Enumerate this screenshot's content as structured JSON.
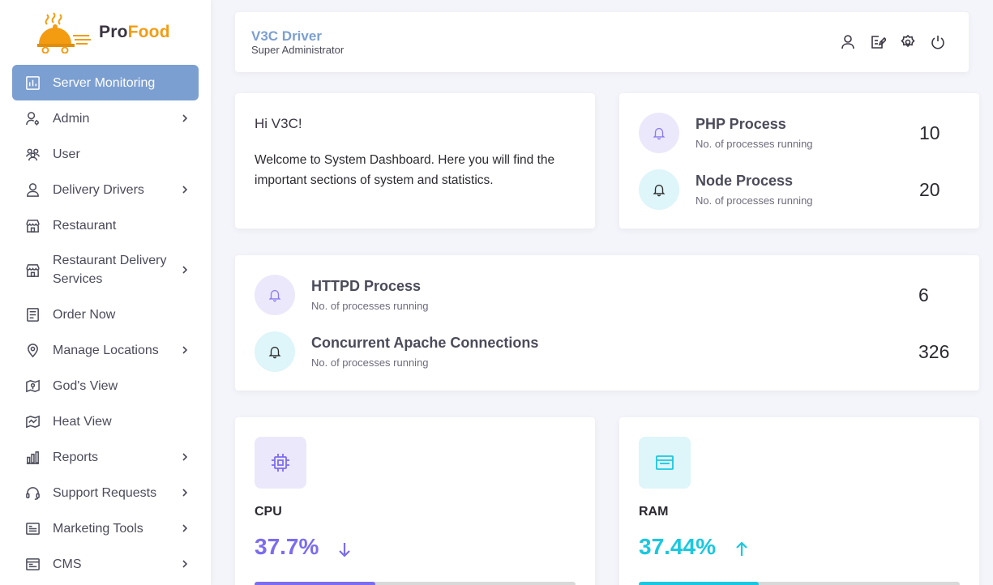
{
  "brand": {
    "logo_pro": "Pro",
    "logo_food": "Food",
    "accent": "#f39c12"
  },
  "sidebar": {
    "active_color": "#7c9fd1",
    "items": [
      {
        "label": "Server Monitoring",
        "icon": "chart-icon",
        "active": true
      },
      {
        "label": "Admin",
        "icon": "admin-icon",
        "has_submenu": true
      },
      {
        "label": "User",
        "icon": "users-icon"
      },
      {
        "label": "Delivery Drivers",
        "icon": "driver-icon",
        "has_submenu": true
      },
      {
        "label": "Restaurant",
        "icon": "store-icon"
      },
      {
        "label": "Restaurant Delivery Services",
        "icon": "store-icon",
        "has_submenu": true
      },
      {
        "label": "Order Now",
        "icon": "order-icon"
      },
      {
        "label": "Manage Locations",
        "icon": "location-pin-icon",
        "has_submenu": true
      },
      {
        "label": "God's View",
        "icon": "map-view-icon"
      },
      {
        "label": "Heat View",
        "icon": "heat-map-icon"
      },
      {
        "label": "Reports",
        "icon": "bar-chart-icon",
        "has_submenu": true
      },
      {
        "label": "Support Requests",
        "icon": "headset-icon",
        "has_submenu": true
      },
      {
        "label": "Marketing Tools",
        "icon": "marketing-icon",
        "has_submenu": true
      },
      {
        "label": "CMS",
        "icon": "cms-icon",
        "has_submenu": true
      }
    ]
  },
  "header": {
    "user_name": "V3C Driver",
    "user_role": "Super Administrator",
    "icons": [
      "profile-icon",
      "edit-note-icon",
      "settings-icon",
      "power-icon"
    ]
  },
  "welcome": {
    "greeting": "Hi V3C!",
    "message": "Welcome to System Dashboard. Here you will find the important sections of system and statistics."
  },
  "processes": [
    {
      "title": "PHP Process",
      "subtitle": "No. of processes running",
      "value": "10",
      "icon": "bell-icon",
      "tone": "purple"
    },
    {
      "title": "Node Process",
      "subtitle": "No. of processes running",
      "value": "20",
      "icon": "bell-icon",
      "tone": "cyan"
    },
    {
      "title": "HTTPD Process",
      "subtitle": "No. of processes running",
      "value": "6",
      "icon": "bell-icon",
      "tone": "purple"
    },
    {
      "title": "Concurrent Apache Connections",
      "subtitle": "No. of processes running",
      "value": "326",
      "icon": "bell-icon",
      "tone": "cyan"
    }
  ],
  "stats": {
    "cpu": {
      "label": "CPU",
      "value": "37.7%",
      "percent": 37.7,
      "trend": "down",
      "color": "#7b6cf0",
      "icon": "cpu-chip-icon"
    },
    "ram": {
      "label": "RAM",
      "value": "37.44%",
      "percent": 37.44,
      "trend": "up",
      "color": "#19c8e0",
      "icon": "window-icon"
    }
  }
}
